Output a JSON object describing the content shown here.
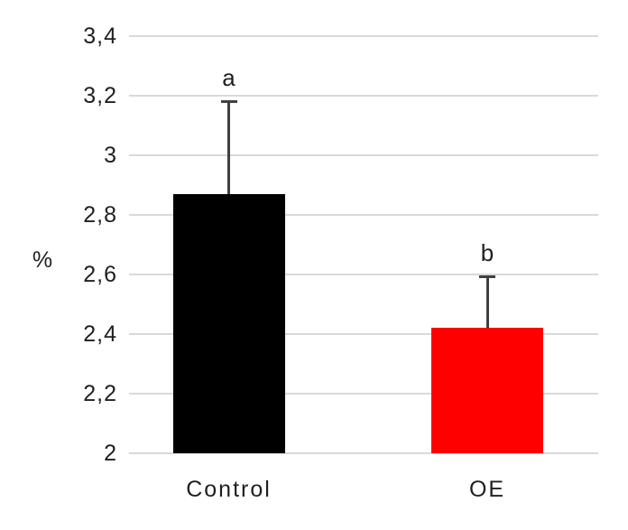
{
  "chart_data": {
    "type": "bar",
    "title": "",
    "xlabel": "",
    "ylabel": "%",
    "categories": [
      "Control",
      "OE"
    ],
    "values": [
      2.87,
      2.42
    ],
    "error_plus": [
      0.31,
      0.17
    ],
    "significance_labels": [
      "a",
      "b"
    ],
    "bar_colors": [
      "#000000",
      "#ff0000"
    ],
    "ylim": [
      2,
      3.4
    ],
    "y_tick_step": 0.2,
    "y_ticks": [
      2,
      2.2,
      2.4,
      2.6,
      2.8,
      3,
      3.2,
      3.4
    ],
    "y_tick_labels": [
      "2",
      "2,2",
      "2,4",
      "2,6",
      "2,8",
      "3",
      "3,2",
      "3,4"
    ],
    "decimal_separator": ",",
    "grid": true,
    "legend": "none",
    "colors": {
      "gridline": "#d9d9d9",
      "error_bar": "#404040",
      "text": "#1f1f1f",
      "background": "#ffffff"
    }
  }
}
